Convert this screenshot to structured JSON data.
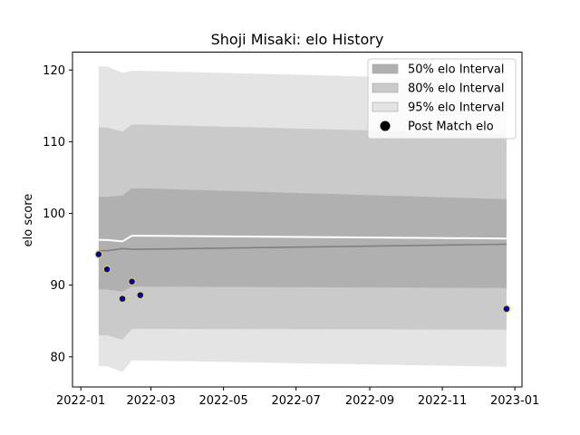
{
  "chart_data": {
    "type": "line",
    "title": "Shoji Misaki: elo History",
    "xlabel": "",
    "ylabel": "elo score",
    "x_ticks": [
      "2022-01",
      "2022-03",
      "2022-05",
      "2022-07",
      "2022-09",
      "2022-11",
      "2023-01"
    ],
    "x_tick_dates": [
      "2022-01-01",
      "2022-03-01",
      "2022-05-01",
      "2022-07-01",
      "2022-09-01",
      "2022-11-01",
      "2023-01-01"
    ],
    "xlim": [
      "2021-12-25",
      "2023-01-07"
    ],
    "y_ticks": [
      80,
      90,
      100,
      110,
      120
    ],
    "ylim": [
      75.8,
      122.5
    ],
    "grid": false,
    "legend_position": "top-right",
    "colors": {
      "band_50": "#b0b0b0",
      "band_80": "#cacaca",
      "band_95": "#e4e4e4",
      "mean_line": "#808080",
      "upper_line": "#ffffff",
      "point_fill": "#0000aa",
      "point_edge": "#e0d040"
    },
    "dates": [
      "2022-01-16",
      "2022-01-23",
      "2022-02-05",
      "2022-02-13",
      "2022-02-20",
      "2022-12-25"
    ],
    "bands": {
      "ci95_upper": [
        120.5,
        120.5,
        119.6,
        119.9,
        119.9,
        118.6
      ],
      "ci95_lower": [
        78.7,
        78.7,
        77.9,
        79.5,
        79.5,
        78.6
      ],
      "ci80_upper": [
        112.0,
        112.0,
        111.4,
        112.4,
        112.4,
        111.1
      ],
      "ci80_lower": [
        83.0,
        83.0,
        82.4,
        83.9,
        83.9,
        83.8
      ],
      "ci50_upper": [
        102.3,
        102.3,
        102.5,
        103.5,
        103.5,
        102.0
      ],
      "ci50_lower": [
        89.4,
        89.4,
        89.1,
        89.8,
        89.8,
        89.6
      ]
    },
    "mean_line": [
      94.8,
      94.8,
      95.1,
      95.0,
      95.0,
      95.7
    ],
    "upper_line": [
      96.3,
      96.3,
      96.1,
      96.9,
      96.9,
      96.5
    ],
    "series": [
      {
        "name": "Post Match elo",
        "x": [
          "2022-01-16",
          "2022-01-23",
          "2022-02-05",
          "2022-02-13",
          "2022-02-20",
          "2022-12-25"
        ],
        "y": [
          94.3,
          92.2,
          88.1,
          90.5,
          88.6,
          86.7
        ]
      }
    ],
    "legend": [
      {
        "label": "50% elo Interval",
        "kind": "patch",
        "color": "#b0b0b0"
      },
      {
        "label": "80% elo Interval",
        "kind": "patch",
        "color": "#cacaca"
      },
      {
        "label": "95% elo Interval",
        "kind": "patch",
        "color": "#e4e4e4"
      },
      {
        "label": "Post Match elo",
        "kind": "marker",
        "color": "#000000"
      }
    ]
  }
}
